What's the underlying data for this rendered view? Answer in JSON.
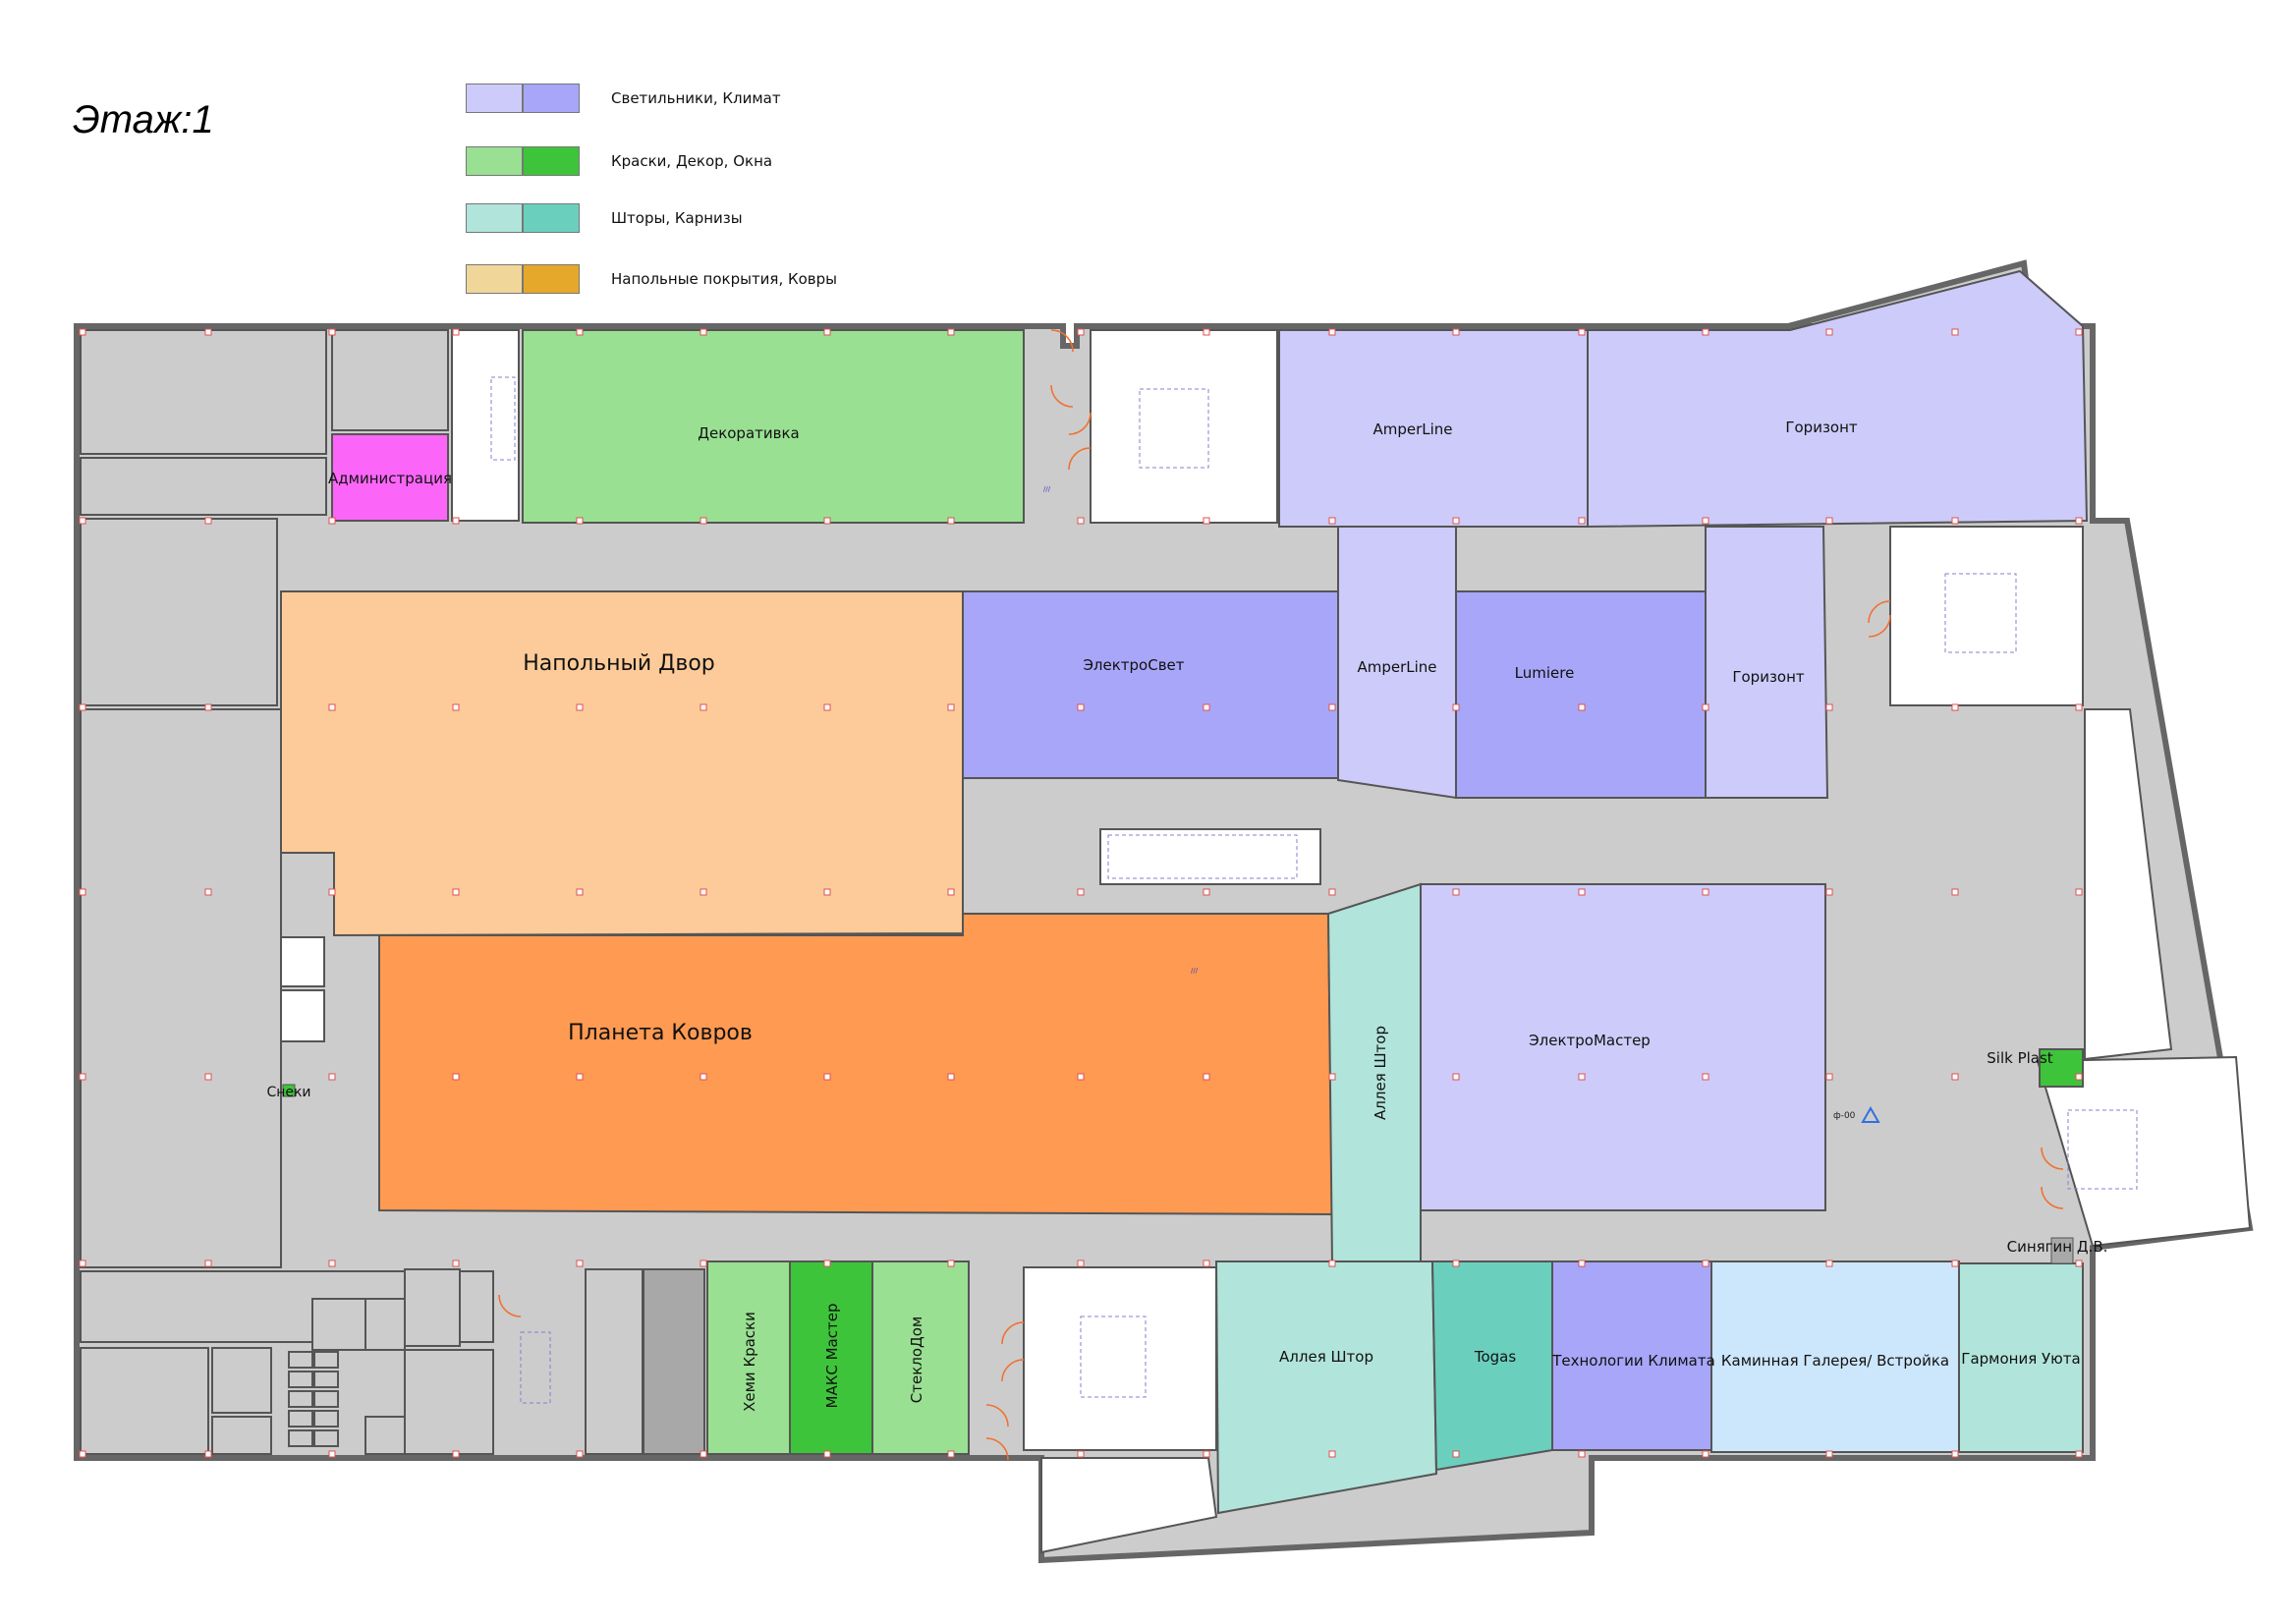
{
  "floor_title": "Этаж:1",
  "legend": [
    {
      "label": "Светильники, Климат",
      "light": "#cccbfa",
      "dark": "#a8a6f8"
    },
    {
      "label": "Краски, Декор, Окна",
      "light": "#99e092",
      "dark": "#3ec43a"
    },
    {
      "label": "Шторы, Карнизы",
      "light": "#b1e4db",
      "dark": "#6bcfbd"
    },
    {
      "label": "Напольные покрытия, Ковры",
      "light": "#f1d69a",
      "dark": "#e5a82a"
    }
  ],
  "colors": {
    "corridor": "#cccccc",
    "wall": "#666666",
    "admin": "#fb66f8",
    "floor_light": "#fdcb99",
    "floor_dark": "#fe9a52",
    "klimat_pale": "#cce6fb",
    "service_dark": "#a8a8a8"
  },
  "stores": {
    "dekorativka": "Декоративка",
    "administraciya": "Администрация",
    "amperline_top": "AmperLine",
    "gorizont_top": "Горизонт",
    "napolnyi_dvor": "Напольный Двор",
    "elektrosvet": "ЭлектроСвет",
    "amperline_mid": "AmperLine",
    "lumiere": "Lumiere",
    "gorizont_mid": "Горизонт",
    "planeta_kovrov": "Планета Ковров",
    "alleya_shtor_vertical": "Аллея Штор",
    "elektromaster": "ЭлектроМастер",
    "silk_plast": "Silk Plast",
    "sneki": "Снеки",
    "khemi_kraski": "Хеми Краски",
    "maks_master": "МАКС Мастер",
    "steklodom": "СтеклоДом",
    "alleya_shtor_bottom": "Аллея Штор",
    "togas": "Togas",
    "tekhnologii_klimata": "Технологии Климата",
    "kaminnaya_galereya": "Каминная Галерея/ Встройка",
    "garmoniya_uyuta": "Гармония Уюта",
    "sinyagin": "Синягин Д.В."
  }
}
